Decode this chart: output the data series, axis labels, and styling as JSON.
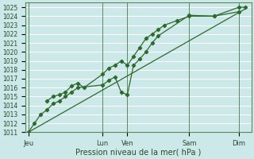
{
  "title": "",
  "xlabel": "Pression niveau de la mer( hPa )",
  "bg_color": "#cce8e8",
  "grid_color": "#ffffff",
  "line_color": "#2d6a2d",
  "marker": "D",
  "marker_size": 2.2,
  "ylim": [
    1011,
    1025.5
  ],
  "yticks": [
    1011,
    1012,
    1013,
    1014,
    1015,
    1016,
    1017,
    1018,
    1019,
    1020,
    1021,
    1022,
    1023,
    1024,
    1025
  ],
  "xtick_labels": [
    "Jeu",
    "Lun",
    "Ven",
    "Sam",
    "Dim"
  ],
  "xtick_positions": [
    0.0,
    3.0,
    4.0,
    6.5,
    8.5
  ],
  "xlim": [
    -0.1,
    9.0
  ],
  "vlines": [
    0.0,
    3.0,
    4.0,
    6.5,
    8.5
  ],
  "series": [
    {
      "x": [
        0.0,
        0.25,
        0.5,
        0.75,
        1.0,
        1.25,
        1.5,
        1.75,
        2.0,
        3.0,
        3.25,
        3.5,
        3.75,
        4.0,
        4.25,
        4.5,
        4.75,
        5.0,
        5.25,
        6.5,
        7.5,
        8.5,
        8.75
      ],
      "y": [
        1011,
        1012,
        1013,
        1013.5,
        1014.2,
        1014.5,
        1015.0,
        1015.5,
        1016.0,
        1016.3,
        1016.8,
        1017.2,
        1015.5,
        1015.2,
        1018.5,
        1019.2,
        1020.0,
        1021.0,
        1021.8,
        1024.1,
        1024.0,
        1025.0,
        1025.0
      ]
    },
    {
      "x": [
        0.75,
        1.0,
        1.25,
        1.5,
        1.75,
        2.0,
        2.25,
        3.0,
        3.25,
        3.5,
        3.75,
        4.0,
        4.25,
        4.5,
        4.75,
        5.0,
        5.25,
        5.5,
        6.0,
        6.5,
        7.5,
        8.5
      ],
      "y": [
        1014.5,
        1015.0,
        1015.2,
        1015.5,
        1016.2,
        1016.5,
        1016.0,
        1017.5,
        1018.2,
        1018.5,
        1019.0,
        1018.5,
        1019.5,
        1020.5,
        1021.5,
        1022.0,
        1022.5,
        1023.0,
        1023.5,
        1024.0,
        1024.0,
        1024.5
      ]
    },
    {
      "x": [
        0.0,
        8.75
      ],
      "y": [
        1011.0,
        1024.8
      ]
    }
  ]
}
